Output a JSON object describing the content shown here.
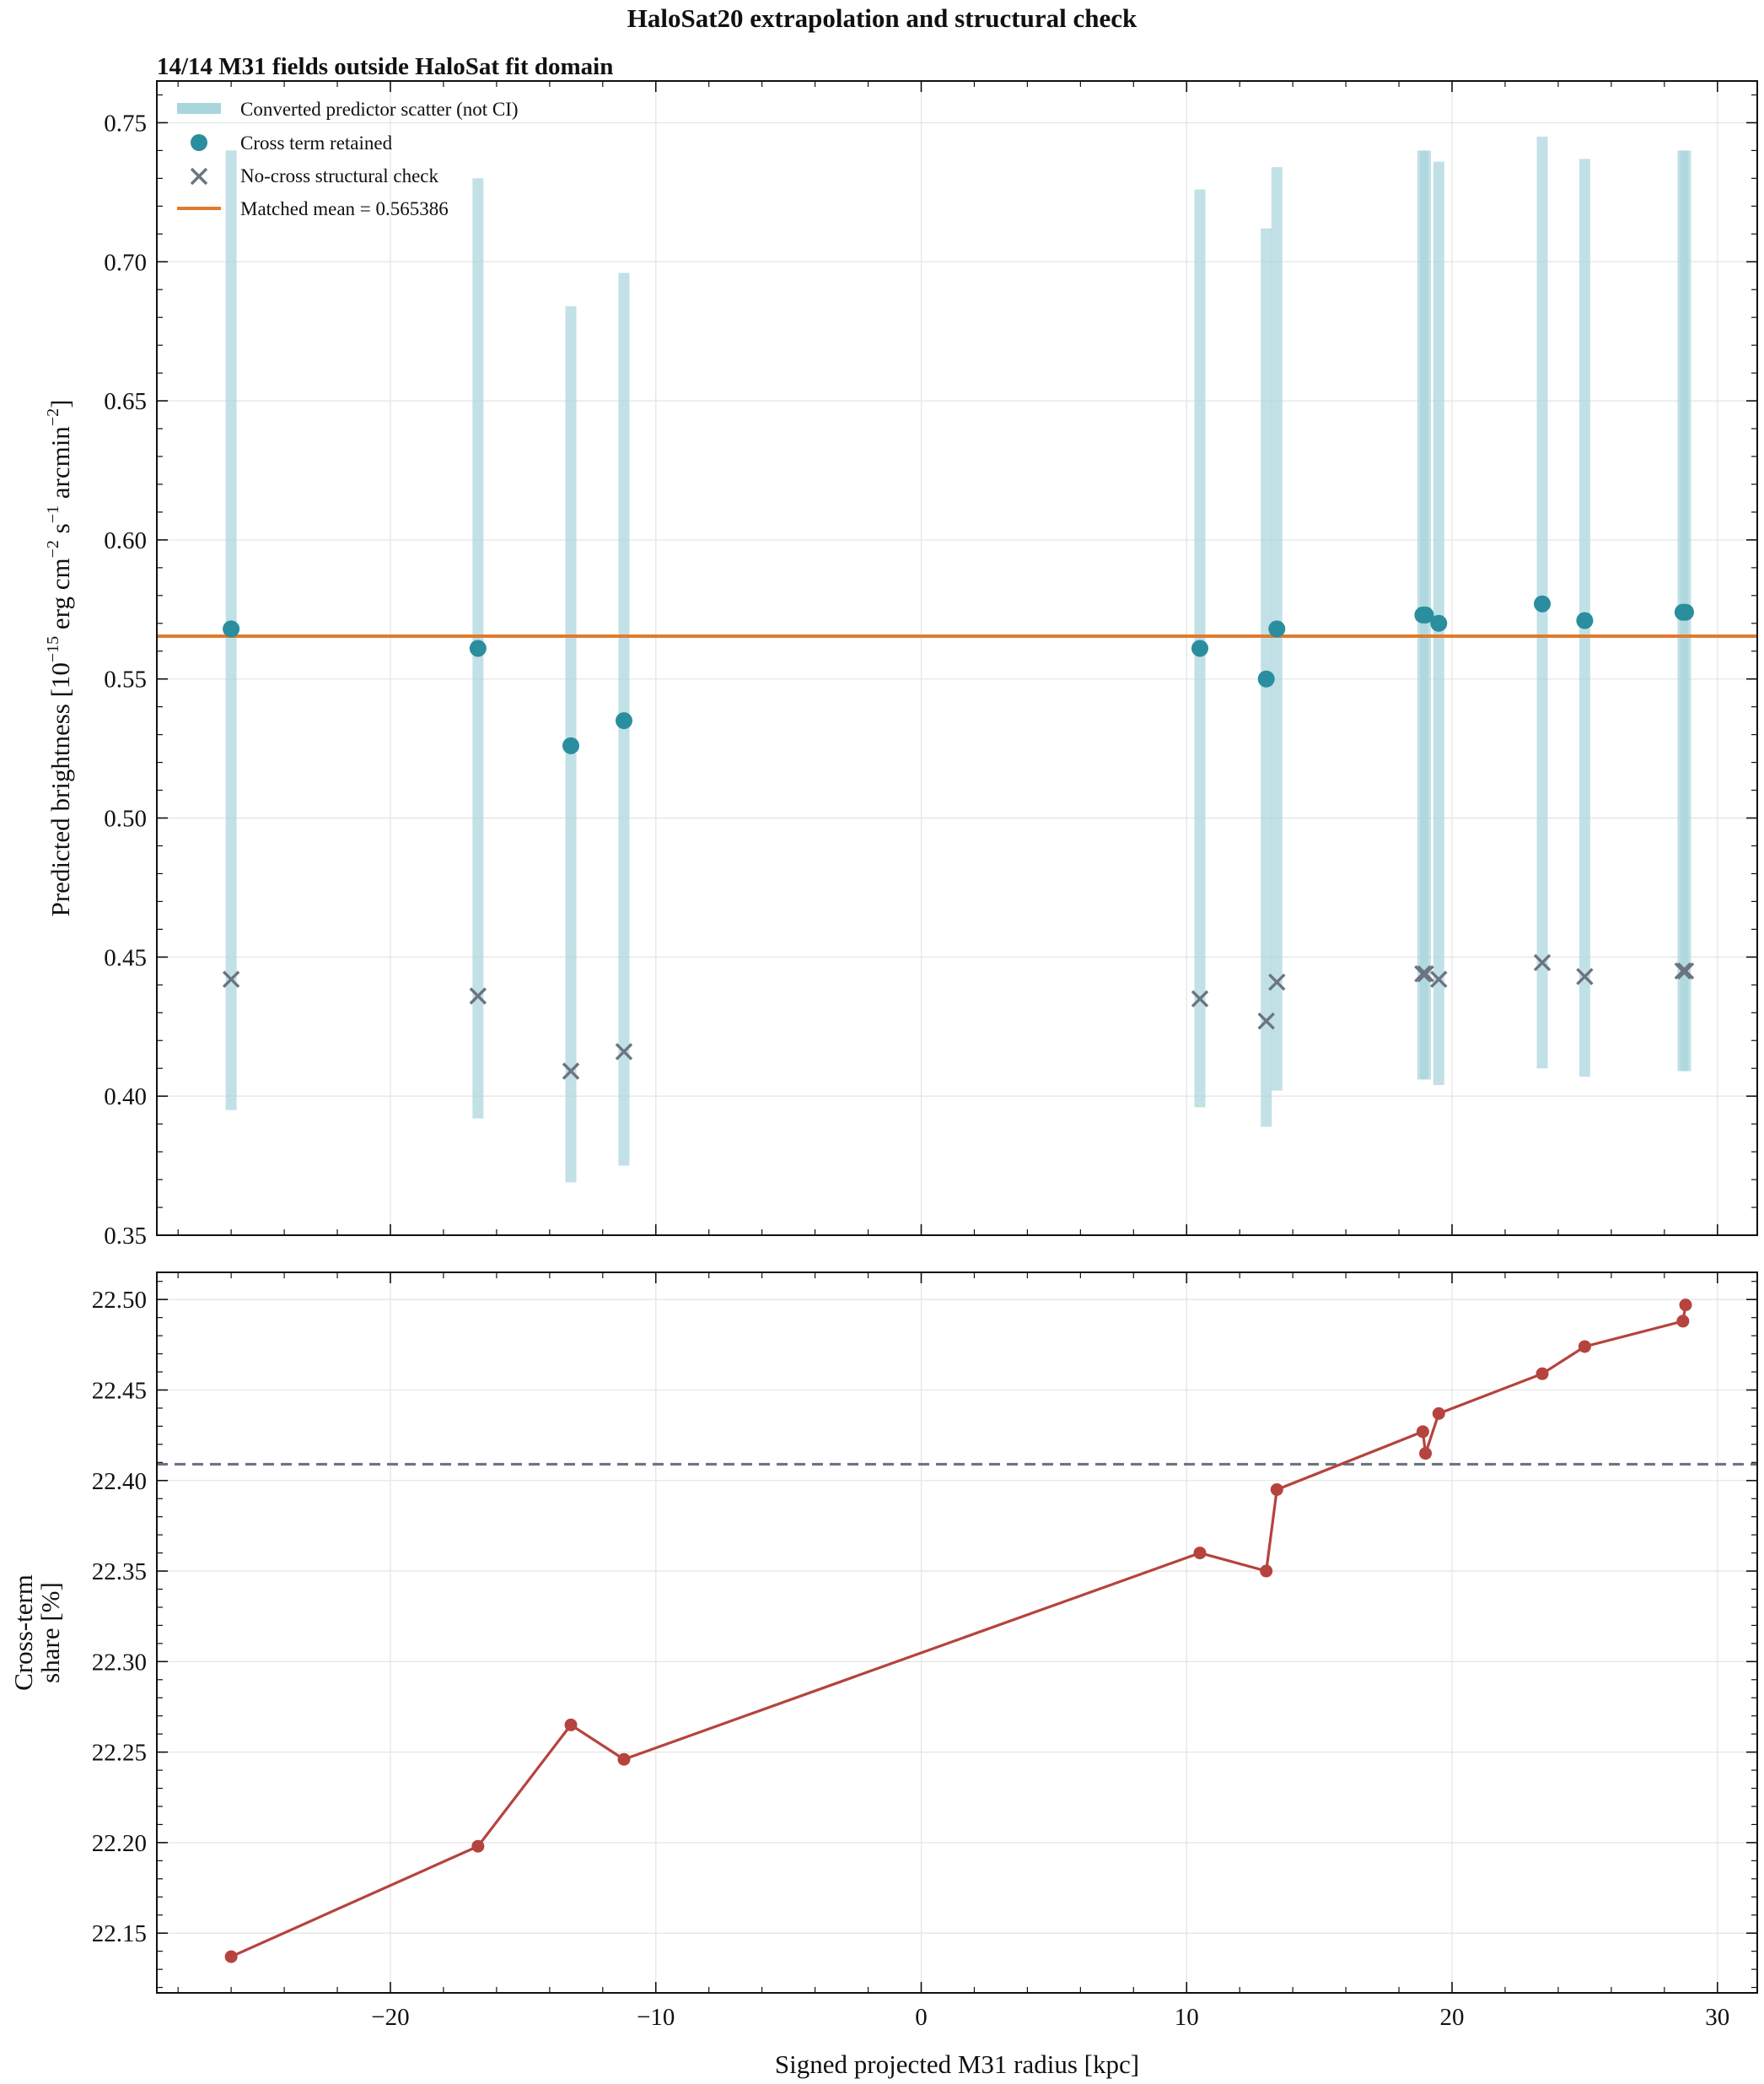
{
  "chart_data": [
    {
      "type": "scatter",
      "suptitle": "HaloSat20 extrapolation and structural check",
      "title": "14/14 M31 fields outside HaloSat fit domain",
      "xlabel": "",
      "ylabel": "Predicted brightness [10^-15 erg cm^-2 s^-1 arcmin^-2]",
      "ylabel_parts": {
        "prefix": "Predicted brightness [10",
        "e1": "−15",
        "mid1": " erg cm",
        "e2": "−2",
        "mid2": " s",
        "e3": "−1",
        "mid3": " arcmin",
        "e4": "−2",
        "suffix": "]"
      },
      "xlim": [
        -28.8,
        31.5
      ],
      "ylim": [
        0.35,
        0.765
      ],
      "xticks": [
        -20,
        -10,
        0,
        10,
        20,
        30
      ],
      "xtick_labels": [
        "−20",
        "−10",
        "0",
        "10",
        "20",
        "30"
      ],
      "yticks": [
        0.35,
        0.4,
        0.45,
        0.5,
        0.55,
        0.6,
        0.65,
        0.7,
        0.75
      ],
      "ytick_labels": [
        "0.35",
        "0.40",
        "0.45",
        "0.50",
        "0.55",
        "0.60",
        "0.65",
        "0.70",
        "0.75"
      ],
      "grid": true,
      "legend_position": "top-left",
      "x": [
        -26.0,
        -16.7,
        -13.2,
        -11.2,
        10.5,
        13.0,
        13.4,
        18.9,
        19.0,
        19.5,
        23.4,
        25.0,
        28.7,
        28.8
      ],
      "series": [
        {
          "name": "Converted predictor scatter (not CI)",
          "kind": "range_bar",
          "color": "#a9d6dd",
          "low": [
            0.395,
            0.392,
            0.369,
            0.375,
            0.396,
            0.389,
            0.402,
            0.406,
            0.406,
            0.404,
            0.41,
            0.407,
            0.409,
            0.409
          ],
          "high": [
            0.74,
            0.73,
            0.684,
            0.696,
            0.726,
            0.712,
            0.734,
            0.74,
            0.74,
            0.736,
            0.745,
            0.737,
            0.74,
            0.74
          ]
        },
        {
          "name": "Cross term retained",
          "kind": "points",
          "color": "#2a8e9e",
          "values": [
            0.568,
            0.561,
            0.526,
            0.535,
            0.561,
            0.55,
            0.568,
            0.573,
            0.573,
            0.57,
            0.577,
            0.571,
            0.574,
            0.574
          ]
        },
        {
          "name": "No-cross structural check",
          "kind": "x_markers",
          "color": "#6d7380",
          "values": [
            0.442,
            0.436,
            0.409,
            0.416,
            0.435,
            0.427,
            0.441,
            0.444,
            0.444,
            0.442,
            0.448,
            0.443,
            0.445,
            0.445
          ]
        },
        {
          "name": "Matched mean = 0.565386",
          "kind": "hline",
          "color": "#e07b2c",
          "value": 0.565386
        }
      ]
    },
    {
      "type": "line",
      "title": "",
      "xlabel": "Signed projected M31 radius [kpc]",
      "ylabel_lines": [
        "Cross-term",
        "share [%]"
      ],
      "xlim": [
        -28.8,
        31.5
      ],
      "ylim": [
        22.117,
        22.515
      ],
      "xticks": [
        -20,
        -10,
        0,
        10,
        20,
        30
      ],
      "xtick_labels": [
        "−20",
        "−10",
        "0",
        "10",
        "20",
        "30"
      ],
      "yticks": [
        22.15,
        22.2,
        22.25,
        22.3,
        22.35,
        22.4,
        22.45,
        22.5
      ],
      "ytick_labels": [
        "22.15",
        "22.20",
        "22.25",
        "22.30",
        "22.35",
        "22.40",
        "22.45",
        "22.50"
      ],
      "grid": true,
      "x": [
        -26.0,
        -16.7,
        -13.2,
        -11.2,
        10.5,
        13.0,
        13.4,
        18.9,
        19.0,
        19.5,
        23.4,
        25.0,
        28.7,
        28.8
      ],
      "series": [
        {
          "kind": "line_markers",
          "color": "#b5433e",
          "values": [
            22.137,
            22.198,
            22.265,
            22.246,
            22.36,
            22.35,
            22.395,
            22.427,
            22.415,
            22.437,
            22.459,
            22.474,
            22.488,
            22.497
          ]
        },
        {
          "kind": "hline_dashed",
          "color": "#6d7380",
          "value": 22.409
        }
      ]
    }
  ]
}
